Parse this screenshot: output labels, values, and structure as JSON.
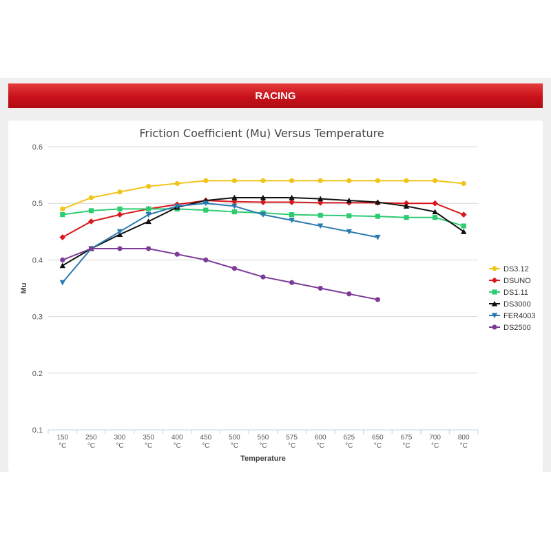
{
  "banner": {
    "title": "RACING"
  },
  "colors": {
    "banner": "#c8101a"
  },
  "chart_data": {
    "type": "line",
    "title": "Friction Coefficient (Mu) Versus Temperature",
    "xlabel": "Temperature",
    "ylabel": "Mu",
    "categories": [
      [
        "150",
        "°C"
      ],
      [
        "250",
        "°C"
      ],
      [
        "300",
        "°C"
      ],
      [
        "350",
        "°C"
      ],
      [
        "400",
        "°C"
      ],
      [
        "450",
        "°C"
      ],
      [
        "500",
        "°C"
      ],
      [
        "550",
        "°C"
      ],
      [
        "575",
        "°C"
      ],
      [
        "600",
        "°C"
      ],
      [
        "625",
        "°C"
      ],
      [
        "650",
        "°C"
      ],
      [
        "675",
        "°C"
      ],
      [
        "700",
        "°C"
      ],
      [
        "800",
        "°C"
      ]
    ],
    "ylim": [
      0.1,
      0.6
    ],
    "yticks": [
      "0.1",
      "0.2",
      "0.3",
      "0.4",
      "0.5",
      "0.6"
    ],
    "grid": true,
    "legend_position": "right",
    "series": [
      {
        "name": "DS3.12",
        "color": "#f0c419",
        "marker": "circle",
        "values": [
          0.49,
          0.51,
          0.52,
          0.53,
          0.535,
          0.54,
          0.54,
          0.54,
          0.54,
          0.54,
          0.54,
          0.54,
          0.54,
          0.54,
          0.535
        ]
      },
      {
        "name": "DSUNO",
        "color": "#d7191c",
        "marker": "diamond",
        "values": [
          0.44,
          0.468,
          0.48,
          0.49,
          0.498,
          0.505,
          0.503,
          0.502,
          0.502,
          0.501,
          0.501,
          0.501,
          0.5,
          0.5,
          0.48
        ]
      },
      {
        "name": "DS1.11",
        "color": "#2ecc71",
        "marker": "square",
        "values": [
          0.48,
          0.487,
          0.49,
          0.49,
          0.49,
          0.488,
          0.485,
          0.483,
          0.48,
          0.479,
          0.478,
          0.477,
          0.475,
          0.475,
          0.46
        ]
      },
      {
        "name": "DS3000",
        "color": "#111111",
        "marker": "triangle",
        "values": [
          0.39,
          0.42,
          0.445,
          0.468,
          0.493,
          0.505,
          0.51,
          0.51,
          0.51,
          0.508,
          0.505,
          0.502,
          0.495,
          0.485,
          0.45
        ]
      },
      {
        "name": "FER4003",
        "color": "#2a7ab0",
        "marker": "triangle-down",
        "values": [
          0.36,
          0.42,
          0.45,
          0.48,
          0.495,
          0.5,
          0.495,
          0.48,
          0.47,
          0.46,
          0.45,
          0.44,
          null,
          null,
          null
        ]
      },
      {
        "name": "DS2500",
        "color": "#7d3c98",
        "marker": "circle",
        "values": [
          0.4,
          0.42,
          0.42,
          0.42,
          0.41,
          0.4,
          0.385,
          0.37,
          0.36,
          0.35,
          0.34,
          0.33,
          null,
          null,
          null
        ]
      }
    ]
  }
}
